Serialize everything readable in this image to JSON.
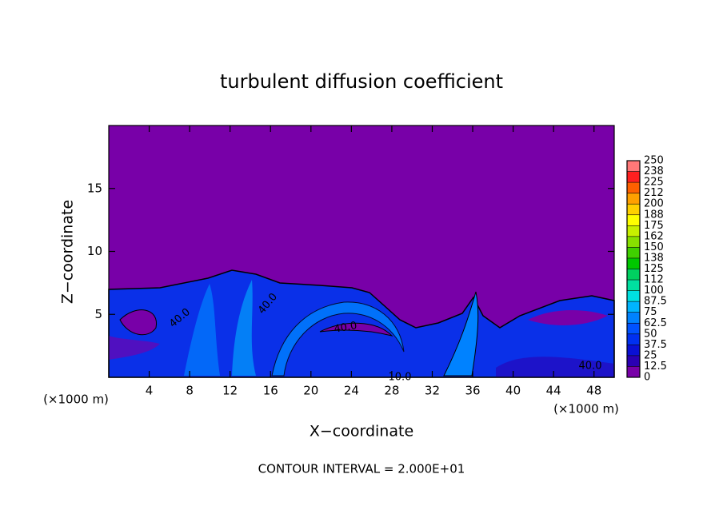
{
  "chart_data": {
    "type": "contour",
    "title": "turbulent diffusion coefficient",
    "xlabel": "X−coordinate",
    "ylabel": "Z−coordinate",
    "unit_label": "(×1000 m)",
    "footnote": "CONTOUR INTERVAL = 2.000E+01",
    "xlim": [
      0,
      50
    ],
    "xticks": [
      4,
      8,
      12,
      16,
      20,
      24,
      28,
      32,
      36,
      40,
      44,
      48
    ],
    "ylim": [
      0,
      20
    ],
    "yticks": [
      5,
      10,
      15
    ],
    "contour_labels": [
      "40.0",
      "40.0",
      "40.0",
      "40.0",
      "10.0"
    ],
    "levels": [
      0,
      12.5,
      25,
      37.5,
      50,
      62.5,
      75,
      87.5,
      100,
      {
        "value": 112.5,
        "label": "112"
      },
      125,
      {
        "value": 137.5,
        "label": "138"
      },
      150,
      {
        "value": 162.5,
        "label": "162"
      },
      175,
      {
        "value": 187.5,
        "label": "188"
      },
      200,
      {
        "value": 212.5,
        "label": "212"
      },
      225,
      {
        "value": 237.5,
        "label": "238"
      },
      250
    ],
    "colors": [
      "#7800a8",
      "#2a00b4",
      "#0a10d4",
      "#0030f0",
      "#0052ff",
      "#0082ff",
      "#00b4ff",
      "#00e0e0",
      "#00e0a0",
      "#00d060",
      "#00c800",
      "#40d000",
      "#88e000",
      "#c8f000",
      "#ffff00",
      "#ffd000",
      "#ffa000",
      "#ff6000",
      "#ff2020",
      "#ff7878"
    ]
  }
}
